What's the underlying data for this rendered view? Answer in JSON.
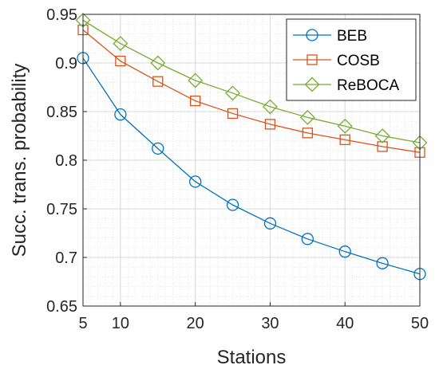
{
  "chart_data": {
    "type": "line",
    "xlabel": "Stations",
    "ylabel": "Succ. trans. probability",
    "xlim": [
      5,
      50
    ],
    "ylim": [
      0.65,
      0.95
    ],
    "xticks": [
      5,
      10,
      20,
      30,
      40,
      50
    ],
    "yticks": [
      0.65,
      0.7,
      0.75,
      0.8,
      0.85,
      0.9,
      0.95
    ],
    "x": [
      5,
      10,
      15,
      20,
      25,
      30,
      35,
      40,
      45,
      50
    ],
    "grid": true,
    "minor_grid": true,
    "legend_position": "top-right",
    "series": [
      {
        "name": "BEB",
        "color": "#0072BD",
        "marker": "circle",
        "values": [
          0.905,
          0.847,
          0.812,
          0.778,
          0.754,
          0.735,
          0.719,
          0.706,
          0.694,
          0.683
        ]
      },
      {
        "name": "COSB",
        "color": "#D95319",
        "marker": "square",
        "values": [
          0.934,
          0.902,
          0.881,
          0.861,
          0.848,
          0.837,
          0.828,
          0.821,
          0.814,
          0.808
        ]
      },
      {
        "name": "ReBOCA",
        "color": "#77AC30",
        "marker": "diamond",
        "values": [
          0.944,
          0.92,
          0.9,
          0.882,
          0.869,
          0.855,
          0.844,
          0.835,
          0.825,
          0.818
        ]
      }
    ]
  }
}
